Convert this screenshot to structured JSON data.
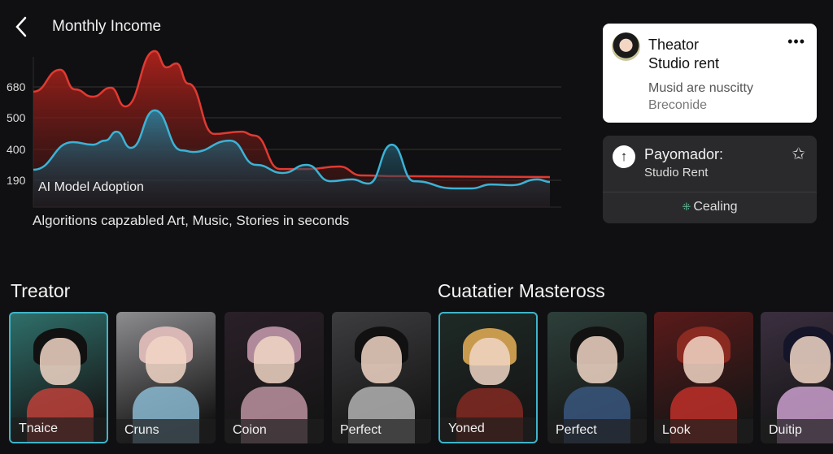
{
  "header": {
    "title": "Monthly Income",
    "back_icon": "chevron-left-icon"
  },
  "chart_data": {
    "type": "area",
    "title": "",
    "yticks": [
      680,
      500,
      400,
      190
    ],
    "xlim": [
      0,
      100
    ],
    "grid": true,
    "annotation": "AI Model Adoption",
    "caption": "Algoritions capzabled Art, Music, Stories in seconds",
    "series": [
      {
        "color": "#e03a32",
        "x": [
          0,
          5.2,
          8,
          11.5,
          15,
          17.8,
          23.5,
          25.8,
          27.7,
          30,
          35,
          40.3,
          42.8,
          47.7,
          53.2,
          59.2,
          63.5,
          70.9,
          100
        ],
        "y": [
          652,
          780,
          666,
          623,
          675,
          566,
          889,
          794,
          817,
          699,
          449,
          456,
          444,
          267,
          267,
          284,
          223,
          218,
          212
        ]
      },
      {
        "color": "#3bb3d6",
        "x": [
          0,
          7.6,
          11.5,
          13.9,
          16.1,
          18.9,
          23.5,
          28.7,
          30.9,
          38.1,
          43.1,
          48.3,
          52.9,
          57.5,
          61.7,
          64.9,
          69.4,
          73.7,
          81.4,
          84.9,
          88.5,
          92.6,
          97.6,
          100
        ],
        "y": [
          262,
          423,
          415,
          428,
          456,
          405,
          543,
          394,
          383,
          428,
          295,
          240,
          295,
          184,
          196,
          168,
          415,
          184,
          135,
          135,
          162,
          157,
          196,
          179
        ]
      }
    ]
  },
  "notification": {
    "title": "Theator",
    "subtitle": "Studio rent",
    "line1": "Musid are nuscitty",
    "line2": "Breconide",
    "more_icon": "ellipsis-icon"
  },
  "payment": {
    "title": "Payomador:",
    "subtitle": "Studio Rent",
    "action": "Cealing",
    "icon": "arrow-up-circle-icon",
    "star_icon": "star-outline-icon"
  },
  "sections": {
    "left": "Treator",
    "right": "Cuatatier Masteross"
  },
  "tiles": [
    {
      "label": "Tnaice",
      "selected": true,
      "bg": "#2f6f6a",
      "hair": "#111",
      "accent": "#c8423b"
    },
    {
      "label": "Cruns",
      "selected": false,
      "bg": "#8d8d90",
      "hair": "#d9b7b5",
      "accent": "#8fc2dc"
    },
    {
      "label": "Coion",
      "selected": false,
      "bg": "#2a2028",
      "hair": "#b08a9a",
      "accent": "#c79aa9"
    },
    {
      "label": "Perfect",
      "selected": false,
      "bg": "#3d3d40",
      "hair": "#111",
      "accent": "#bbbbbb"
    },
    {
      "label": "Yoned",
      "selected": true,
      "bg": "#1e2a26",
      "hair": "#c89a4e",
      "accent": "#8a2a22"
    },
    {
      "label": "Perfect",
      "selected": false,
      "bg": "#2d3f3a",
      "hair": "#121212",
      "accent": "#3b5a85"
    },
    {
      "label": "Look",
      "selected": false,
      "bg": "#5a1a1a",
      "hair": "#8a2a20",
      "accent": "#c8312a"
    },
    {
      "label": "Duitip",
      "selected": false,
      "bg": "#3b2f40",
      "hair": "#15152a",
      "accent": "#d6a8d8"
    }
  ]
}
